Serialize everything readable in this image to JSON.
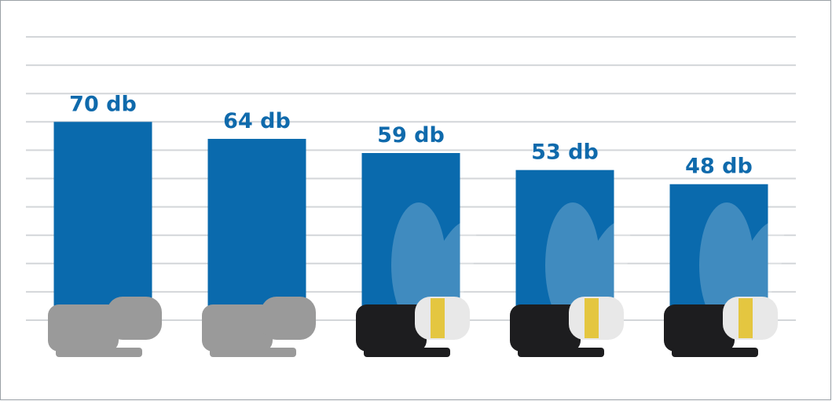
{
  "chart_data": {
    "type": "bar",
    "categories": [
      null,
      null,
      null,
      null,
      null
    ],
    "values": [
      70,
      64,
      59,
      53,
      48
    ],
    "value_labels": [
      "70 db",
      "64 db",
      "59 db",
      "53 db",
      "48 db"
    ],
    "color": "#0a6aad",
    "ylim": [
      0,
      100
    ],
    "yticks": [
      0,
      10,
      20,
      30,
      40,
      50,
      60,
      70,
      80,
      90,
      100
    ],
    "grid": true
  }
}
